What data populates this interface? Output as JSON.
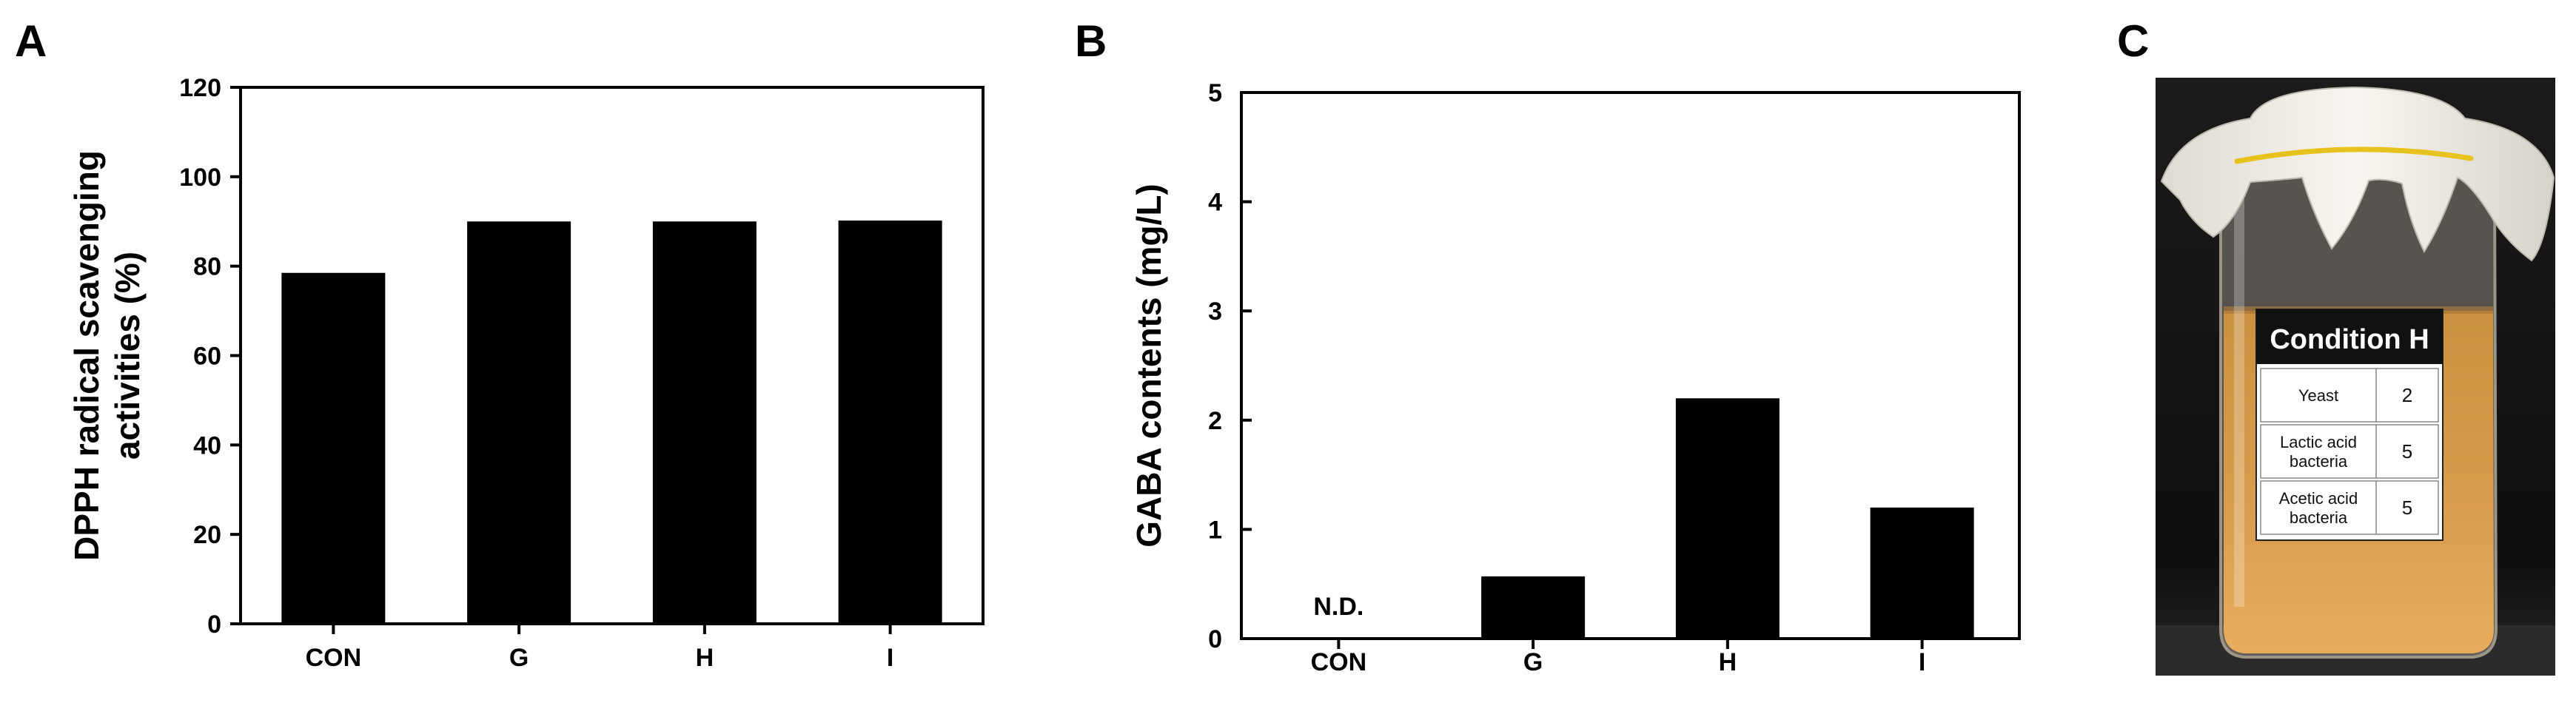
{
  "chart_data": [
    {
      "panel": "A",
      "type": "bar",
      "ylabel_lines": [
        "DPPH radical scavenging",
        "activities (%)"
      ],
      "categories": [
        "CON",
        "G",
        "H",
        "I"
      ],
      "values": [
        78.5,
        90,
        90,
        90.2
      ],
      "ylim": [
        0,
        120
      ],
      "yticks": [
        0,
        20,
        40,
        60,
        80,
        100,
        120
      ],
      "grid": false
    },
    {
      "panel": "B",
      "type": "bar",
      "ylabel": "GABA contents (mg/L)",
      "categories": [
        "CON",
        "G",
        "H",
        "I"
      ],
      "values": [
        0,
        0.57,
        2.2,
        1.2
      ],
      "ylim": [
        0,
        5
      ],
      "yticks": [
        0,
        1,
        2,
        3,
        4,
        5
      ],
      "annotations": [
        {
          "category": "CON",
          "text": "N.D."
        }
      ],
      "grid": false
    }
  ],
  "photo": {
    "panel": "C",
    "label_title": "Condition H",
    "rows": [
      {
        "name_lines": [
          "Yeast"
        ],
        "value": "2"
      },
      {
        "name_lines": [
          "Lactic acid",
          "bacteria"
        ],
        "value": "5"
      },
      {
        "name_lines": [
          "Acetic acid",
          "bacteria"
        ],
        "value": "5"
      }
    ]
  },
  "colors": {
    "bar": "#000000",
    "axis": "#000000",
    "liquid": "#d89a4a",
    "cloth": "#f2f0ea",
    "band": "#e8c21c",
    "background_photo": "#141414"
  }
}
